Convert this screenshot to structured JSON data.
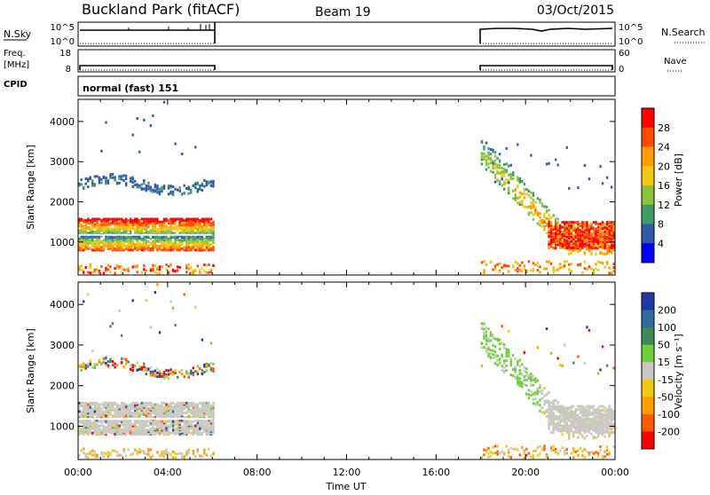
{
  "header": {
    "station": "Buckland Park (fitACF)",
    "beam": "Beam 19",
    "date": "03/Oct/2015"
  },
  "top_panels": {
    "nsky_label": "N.Sky",
    "nsky_ticks": [
      "10^5",
      "10^0"
    ],
    "nsearch_label": "N.Search",
    "nsearch_ticks": [
      "10^5",
      "10^0"
    ],
    "freq_label": "Freq.",
    "freq_unit": "[MHz]",
    "freq_ticks": [
      "18",
      "8"
    ],
    "nave_label": "Nave",
    "nave_ticks": [
      "60",
      "0"
    ],
    "cpid_label": "CPID",
    "cpid_value": "normal (fast) 151"
  },
  "power_colorbar": {
    "label": "Power [dB]",
    "ticks": [
      "28",
      "24",
      "20",
      "16",
      "12",
      "8",
      "4"
    ],
    "colors": [
      "#ff0000",
      "#ff4a00",
      "#ff9c00",
      "#f2c811",
      "#8ec23a",
      "#3f9c6a",
      "#2e5aa8",
      "#0000ff"
    ]
  },
  "velocity_colorbar": {
    "label": "Velocity [m s⁻¹]",
    "ticks": [
      "200",
      "100",
      "50",
      "15",
      "-15",
      "-50",
      "-100",
      "-200"
    ],
    "colors": [
      "#1f3aa8",
      "#2e6a9c",
      "#3f8a5a",
      "#6fcf3a",
      "#c8c8c0",
      "#f2c811",
      "#ff9c00",
      "#ff5a00",
      "#ff0000"
    ]
  },
  "chart_data": [
    {
      "type": "heatmap",
      "name": "power",
      "ylabel": "Slant Range [km]",
      "ylim": [
        180,
        4550
      ],
      "yticks": [
        "4000",
        "3000",
        "2000",
        "1000"
      ],
      "xlim": [
        0,
        24
      ],
      "xticks": [
        "00:00",
        "04:00",
        "08:00",
        "12:00",
        "16:00",
        "20:00",
        "00:00"
      ],
      "data_intervals_ut": [
        [
          0,
          6
        ],
        [
          18,
          24
        ]
      ]
    },
    {
      "type": "heatmap",
      "name": "velocity",
      "ylabel": "Slant Range [km]",
      "ylim": [
        180,
        4550
      ],
      "yticks": [
        "4000",
        "3000",
        "2000",
        "1000"
      ],
      "xlim": [
        0,
        24
      ],
      "xticks": [
        "00:00",
        "04:00",
        "08:00",
        "12:00",
        "16:00",
        "20:00",
        "00:00"
      ],
      "xlabel": "Time UT",
      "data_intervals_ut": [
        [
          0,
          6
        ],
        [
          18,
          24
        ]
      ]
    }
  ]
}
